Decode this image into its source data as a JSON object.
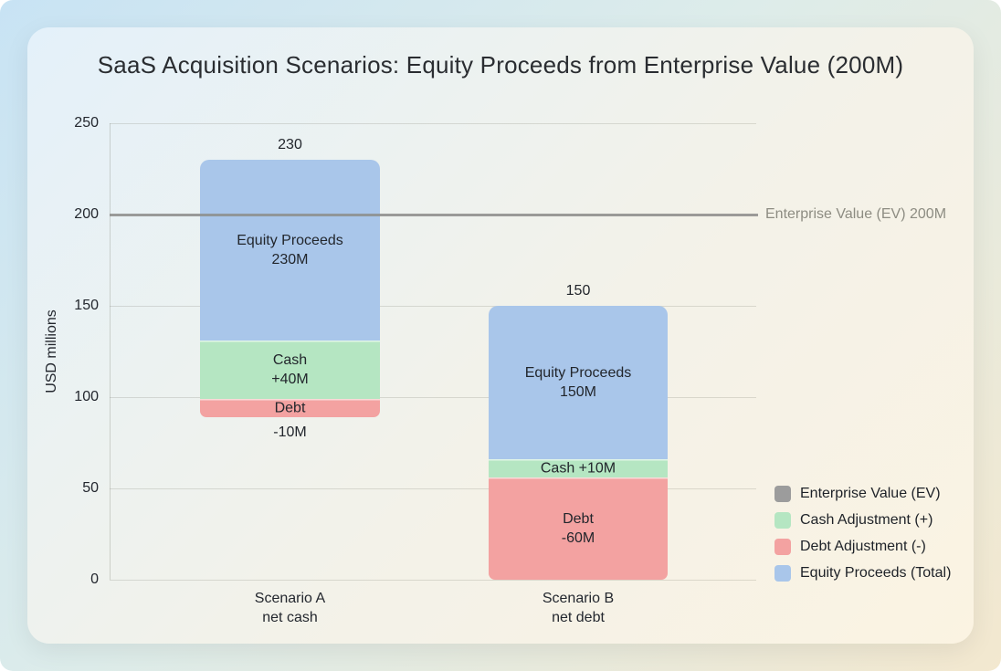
{
  "title": "SaaS Acquisition Scenarios: Equity Proceeds from Enterprise Value (200M)",
  "y_axis": {
    "label": "USD millions",
    "ticks": [
      250,
      200,
      150,
      100,
      50,
      0
    ]
  },
  "ev_line": {
    "value": 200,
    "label": "Enterprise Value (EV) 200M",
    "color": "#8d8d8b"
  },
  "legend": {
    "position": "bottom-right",
    "items": [
      {
        "label": "Enterprise Value (EV)",
        "color": "#9c9c9c"
      },
      {
        "label": "Cash Adjustment (+)",
        "color": "#b5e6c2"
      },
      {
        "label": "Debt Adjustment (-)",
        "color": "#f3a2a1"
      },
      {
        "label": "Equity Proceeds (Total)",
        "color": "#a9c6ea"
      }
    ]
  },
  "chart_data": {
    "type": "bar",
    "stacked": true,
    "grid": true,
    "unit": "USD millions",
    "ylim": [
      0,
      250
    ],
    "ylabel": "USD millions",
    "title": "SaaS Acquisition Scenarios: Equity Proceeds from Enterprise Value (200M)",
    "reference_line": {
      "value": 200,
      "label": "Enterprise Value (EV) 200M"
    },
    "categories": [
      "Scenario A net cash",
      "Scenario B net debt"
    ],
    "bars": [
      {
        "category_lines": [
          "Scenario A",
          "net cash"
        ],
        "total_label": "230",
        "total_value": 230,
        "segments": [
          {
            "name": "debt",
            "value": -10,
            "from": 89,
            "to": 99,
            "color": "#f3a2a1",
            "label_lines": [
              "Debt"
            ],
            "outside_label": "-10M"
          },
          {
            "name": "cash",
            "value": 40,
            "from": 99,
            "to": 131,
            "color": "#b5e6c2",
            "label_lines": [
              "Cash",
              "+40M"
            ]
          },
          {
            "name": "equity",
            "value": 230,
            "from": 131,
            "to": 230,
            "color": "#a9c6ea",
            "label_lines": [
              "Equity Proceeds",
              "230M"
            ]
          }
        ]
      },
      {
        "category_lines": [
          "Scenario B",
          "net debt"
        ],
        "total_label": "150",
        "total_value": 150,
        "segments": [
          {
            "name": "debt",
            "value": -60,
            "from": 0,
            "to": 56,
            "color": "#f3a2a1",
            "label_lines": [
              "Debt",
              "-60M"
            ]
          },
          {
            "name": "cash",
            "value": 10,
            "from": 56,
            "to": 66,
            "color": "#b5e6c2",
            "label_lines": [
              "Cash +10M"
            ]
          },
          {
            "name": "equity",
            "value": 150,
            "from": 66,
            "to": 150,
            "color": "#a9c6ea",
            "label_lines": [
              "Equity Proceeds",
              "150M"
            ]
          }
        ]
      }
    ]
  }
}
